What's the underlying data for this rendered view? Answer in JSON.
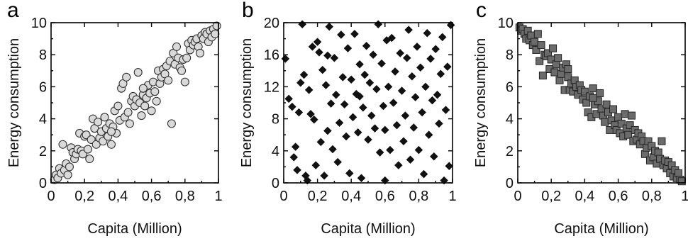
{
  "chart_data": [
    {
      "type": "scatter",
      "panel": "a",
      "xlabel": "Capita (Million)",
      "ylabel": "Energy consumption",
      "xlim": [
        0,
        1
      ],
      "ylim": [
        0,
        10
      ],
      "xticks": [
        0,
        0.2,
        0.4,
        0.6,
        0.8,
        1
      ],
      "yticks": [
        0,
        2,
        4,
        6,
        8,
        10
      ],
      "xtick_labels": [
        "0",
        "0,2",
        "0,4",
        "0,6",
        "0,8",
        "1"
      ],
      "ytick_labels": [
        "0",
        "2",
        "4",
        "6",
        "8",
        "10"
      ],
      "grid": false,
      "marker": "circle",
      "marker_fill": "#d9d9d9",
      "marker_edge": "#333333",
      "points": [
        [
          0.02,
          0.2
        ],
        [
          0.03,
          0.5
        ],
        [
          0.04,
          0.3
        ],
        [
          0.05,
          0.9
        ],
        [
          0.06,
          0.6
        ],
        [
          0.07,
          2.4
        ],
        [
          0.08,
          0.8
        ],
        [
          0.09,
          1.2
        ],
        [
          0.1,
          0.5
        ],
        [
          0.11,
          1.0
        ],
        [
          0.12,
          2.2
        ],
        [
          0.13,
          1.9
        ],
        [
          0.14,
          1.5
        ],
        [
          0.15,
          1.8
        ],
        [
          0.16,
          2.1
        ],
        [
          0.17,
          3.1
        ],
        [
          0.18,
          2.0
        ],
        [
          0.19,
          1.8
        ],
        [
          0.2,
          2.9
        ],
        [
          0.21,
          3.0
        ],
        [
          0.22,
          2.1
        ],
        [
          0.23,
          1.5
        ],
        [
          0.24,
          2.7
        ],
        [
          0.25,
          4.0
        ],
        [
          0.26,
          3.4
        ],
        [
          0.27,
          2.4
        ],
        [
          0.28,
          3.8
        ],
        [
          0.29,
          2.8
        ],
        [
          0.3,
          3.2
        ],
        [
          0.31,
          2.6
        ],
        [
          0.32,
          4.1
        ],
        [
          0.33,
          3.4
        ],
        [
          0.34,
          2.9
        ],
        [
          0.35,
          3.7
        ],
        [
          0.36,
          2.4
        ],
        [
          0.37,
          3.5
        ],
        [
          0.38,
          4.5
        ],
        [
          0.39,
          3.1
        ],
        [
          0.4,
          4.8
        ],
        [
          0.41,
          3.9
        ],
        [
          0.42,
          5.9
        ],
        [
          0.43,
          6.2
        ],
        [
          0.44,
          4.1
        ],
        [
          0.45,
          6.6
        ],
        [
          0.46,
          4.4
        ],
        [
          0.47,
          3.7
        ],
        [
          0.48,
          5.1
        ],
        [
          0.49,
          5.4
        ],
        [
          0.5,
          4.8
        ],
        [
          0.51,
          5.2
        ],
        [
          0.52,
          6.9
        ],
        [
          0.53,
          5.0
        ],
        [
          0.54,
          4.2
        ],
        [
          0.55,
          5.5
        ],
        [
          0.56,
          4.8
        ],
        [
          0.57,
          5.3
        ],
        [
          0.58,
          6.1
        ],
        [
          0.59,
          5.6
        ],
        [
          0.6,
          4.5
        ],
        [
          0.61,
          6.3
        ],
        [
          0.62,
          5.7
        ],
        [
          0.63,
          5.1
        ],
        [
          0.64,
          7.0
        ],
        [
          0.65,
          6.2
        ],
        [
          0.66,
          6.6
        ],
        [
          0.67,
          7.1
        ],
        [
          0.68,
          6.8
        ],
        [
          0.69,
          7.3
        ],
        [
          0.7,
          6.4
        ],
        [
          0.71,
          7.6
        ],
        [
          0.72,
          3.7
        ],
        [
          0.73,
          8.1
        ],
        [
          0.74,
          7.4
        ],
        [
          0.75,
          8.5
        ],
        [
          0.76,
          7.8
        ],
        [
          0.77,
          7.2
        ],
        [
          0.78,
          7.0
        ],
        [
          0.79,
          7.7
        ],
        [
          0.8,
          6.3
        ],
        [
          0.81,
          7.8
        ],
        [
          0.82,
          8.7
        ],
        [
          0.83,
          8.3
        ],
        [
          0.84,
          8.9
        ],
        [
          0.85,
          8.6
        ],
        [
          0.86,
          8.8
        ],
        [
          0.87,
          9.0
        ],
        [
          0.88,
          8.5
        ],
        [
          0.89,
          8.1
        ],
        [
          0.9,
          9.2
        ],
        [
          0.91,
          9.0
        ],
        [
          0.92,
          9.4
        ],
        [
          0.93,
          9.3
        ],
        [
          0.94,
          8.8
        ],
        [
          0.95,
          9.5
        ],
        [
          0.96,
          9.1
        ],
        [
          0.97,
          9.6
        ],
        [
          0.98,
          9.3
        ],
        [
          0.99,
          9.8
        ],
        [
          0.36,
          3.2
        ],
        [
          0.55,
          5.9
        ]
      ]
    },
    {
      "type": "scatter",
      "panel": "b",
      "xlabel": "Capita (Million)",
      "ylabel": "Energy consumption",
      "xlim": [
        0,
        1
      ],
      "ylim": [
        0,
        20
      ],
      "xticks": [
        0,
        0.2,
        0.4,
        0.6,
        0.8,
        1
      ],
      "yticks": [
        0,
        4,
        8,
        12,
        16,
        20
      ],
      "xtick_labels": [
        "0",
        "0,2",
        "0,4",
        "0,6",
        "0,8",
        "1"
      ],
      "ytick_labels": [
        "0",
        "4",
        "8",
        "12",
        "16",
        "20"
      ],
      "grid": false,
      "marker": "diamond",
      "marker_fill": "#111111",
      "marker_edge": "#111111",
      "points": [
        [
          0.01,
          15.5
        ],
        [
          0.03,
          10.5
        ],
        [
          0.05,
          9.5
        ],
        [
          0.06,
          3.2
        ],
        [
          0.07,
          4.5
        ],
        [
          0.08,
          1.6
        ],
        [
          0.09,
          8.8
        ],
        [
          0.1,
          12.5
        ],
        [
          0.11,
          19.8
        ],
        [
          0.12,
          13.5
        ],
        [
          0.13,
          0.9
        ],
        [
          0.14,
          0.3
        ],
        [
          0.15,
          11.6
        ],
        [
          0.16,
          8.6
        ],
        [
          0.17,
          17.0
        ],
        [
          0.18,
          7.9
        ],
        [
          0.19,
          2.2
        ],
        [
          0.2,
          17.6
        ],
        [
          0.21,
          16.3
        ],
        [
          0.22,
          5.1
        ],
        [
          0.23,
          14.1
        ],
        [
          0.24,
          0.9
        ],
        [
          0.25,
          12.2
        ],
        [
          0.26,
          6.5
        ],
        [
          0.27,
          19.5
        ],
        [
          0.28,
          9.9
        ],
        [
          0.29,
          4.2
        ],
        [
          0.3,
          15.6
        ],
        [
          0.31,
          11.0
        ],
        [
          0.32,
          2.6
        ],
        [
          0.33,
          7.5
        ],
        [
          0.34,
          18.5
        ],
        [
          0.35,
          13.2
        ],
        [
          0.36,
          9.8
        ],
        [
          0.37,
          5.8
        ],
        [
          0.38,
          16.8
        ],
        [
          0.39,
          1.2
        ],
        [
          0.4,
          12.9
        ],
        [
          0.41,
          8.2
        ],
        [
          0.42,
          18.6
        ],
        [
          0.43,
          11.1
        ],
        [
          0.44,
          6.3
        ],
        [
          0.45,
          14.8
        ],
        [
          0.46,
          0.6
        ],
        [
          0.47,
          9.4
        ],
        [
          0.48,
          13.5
        ],
        [
          0.49,
          17.1
        ],
        [
          0.5,
          5.4
        ],
        [
          0.51,
          12.5
        ],
        [
          0.52,
          8.4
        ],
        [
          0.53,
          16.0
        ],
        [
          0.54,
          6.8
        ],
        [
          0.55,
          11.7
        ],
        [
          0.56,
          19.8
        ],
        [
          0.57,
          3.8
        ],
        [
          0.58,
          14.9
        ],
        [
          0.59,
          9.6
        ],
        [
          0.6,
          6.6
        ],
        [
          0.61,
          17.8
        ],
        [
          0.62,
          12.0
        ],
        [
          0.63,
          4.1
        ],
        [
          0.64,
          18.1
        ],
        [
          0.65,
          10.0
        ],
        [
          0.66,
          13.9
        ],
        [
          0.67,
          7.2
        ],
        [
          0.68,
          2.2
        ],
        [
          0.69,
          16.2
        ],
        [
          0.7,
          11.5
        ],
        [
          0.71,
          5.2
        ],
        [
          0.72,
          8.4
        ],
        [
          0.73,
          15.6
        ],
        [
          0.74,
          19.1
        ],
        [
          0.75,
          2.9
        ],
        [
          0.76,
          13.3
        ],
        [
          0.77,
          6.9
        ],
        [
          0.78,
          10.7
        ],
        [
          0.79,
          17.0
        ],
        [
          0.8,
          4.1
        ],
        [
          0.81,
          14.4
        ],
        [
          0.82,
          8.8
        ],
        [
          0.83,
          1.1
        ],
        [
          0.84,
          12.0
        ],
        [
          0.85,
          18.7
        ],
        [
          0.86,
          6.0
        ],
        [
          0.87,
          15.5
        ],
        [
          0.88,
          10.3
        ],
        [
          0.89,
          3.3
        ],
        [
          0.9,
          16.7
        ],
        [
          0.91,
          11.0
        ],
        [
          0.92,
          7.4
        ],
        [
          0.93,
          13.6
        ],
        [
          0.94,
          18.2
        ],
        [
          0.95,
          0.3
        ],
        [
          0.96,
          9.1
        ],
        [
          0.97,
          14.5
        ],
        [
          0.98,
          2.1
        ],
        [
          0.99,
          19.7
        ],
        [
          0.45,
          10.8
        ],
        [
          0.6,
          0.3
        ],
        [
          0.26,
          15.9
        ]
      ]
    },
    {
      "type": "scatter",
      "panel": "c",
      "xlabel": "Capita (Million)",
      "ylabel": "Energy consumption",
      "xlim": [
        0,
        1
      ],
      "ylim": [
        0,
        10
      ],
      "xticks": [
        0,
        0.2,
        0.4,
        0.6,
        0.8,
        1
      ],
      "yticks": [
        0,
        2,
        4,
        6,
        8,
        10
      ],
      "xtick_labels": [
        "0",
        "0,2",
        "0,4",
        "0,6",
        "0,8",
        "1"
      ],
      "ytick_labels": [
        "0",
        "2",
        "4",
        "6",
        "8",
        "10"
      ],
      "grid": false,
      "marker": "square",
      "marker_fill": "#6b6b6b",
      "marker_edge": "#222222",
      "points": [
        [
          0.01,
          9.7
        ],
        [
          0.02,
          9.5
        ],
        [
          0.03,
          9.6
        ],
        [
          0.04,
          9.3
        ],
        [
          0.05,
          9.0
        ],
        [
          0.06,
          9.5
        ],
        [
          0.07,
          8.9
        ],
        [
          0.08,
          9.2
        ],
        [
          0.09,
          8.6
        ],
        [
          0.1,
          8.8
        ],
        [
          0.11,
          8.3
        ],
        [
          0.12,
          9.3
        ],
        [
          0.13,
          7.6
        ],
        [
          0.14,
          8.6
        ],
        [
          0.15,
          6.7
        ],
        [
          0.16,
          8.0
        ],
        [
          0.17,
          7.9
        ],
        [
          0.18,
          8.1
        ],
        [
          0.19,
          7.1
        ],
        [
          0.2,
          7.7
        ],
        [
          0.21,
          8.4
        ],
        [
          0.22,
          6.9
        ],
        [
          0.23,
          7.4
        ],
        [
          0.24,
          7.8
        ],
        [
          0.25,
          6.4
        ],
        [
          0.26,
          6.8
        ],
        [
          0.27,
          7.2
        ],
        [
          0.28,
          5.8
        ],
        [
          0.29,
          7.4
        ],
        [
          0.3,
          6.6
        ],
        [
          0.31,
          5.8
        ],
        [
          0.32,
          6.2
        ],
        [
          0.33,
          5.7
        ],
        [
          0.34,
          6.4
        ],
        [
          0.35,
          6.0
        ],
        [
          0.36,
          5.5
        ],
        [
          0.37,
          6.1
        ],
        [
          0.38,
          5.8
        ],
        [
          0.39,
          5.2
        ],
        [
          0.4,
          5.7
        ],
        [
          0.41,
          5.0
        ],
        [
          0.42,
          4.4
        ],
        [
          0.43,
          5.4
        ],
        [
          0.44,
          4.1
        ],
        [
          0.45,
          5.9
        ],
        [
          0.46,
          4.9
        ],
        [
          0.47,
          4.3
        ],
        [
          0.48,
          5.1
        ],
        [
          0.49,
          5.6
        ],
        [
          0.5,
          4.6
        ],
        [
          0.51,
          4.2
        ],
        [
          0.52,
          3.8
        ],
        [
          0.53,
          4.9
        ],
        [
          0.54,
          4.4
        ],
        [
          0.55,
          3.3
        ],
        [
          0.56,
          3.9
        ],
        [
          0.57,
          4.6
        ],
        [
          0.58,
          3.6
        ],
        [
          0.59,
          3.3
        ],
        [
          0.6,
          4.1
        ],
        [
          0.61,
          3.1
        ],
        [
          0.62,
          3.7
        ],
        [
          0.63,
          2.9
        ],
        [
          0.64,
          4.3
        ],
        [
          0.65,
          3.4
        ],
        [
          0.66,
          3.0
        ],
        [
          0.67,
          3.6
        ],
        [
          0.68,
          4.2
        ],
        [
          0.69,
          2.6
        ],
        [
          0.7,
          3.3
        ],
        [
          0.71,
          2.7
        ],
        [
          0.72,
          3.1
        ],
        [
          0.73,
          2.4
        ],
        [
          0.74,
          2.9
        ],
        [
          0.75,
          2.6
        ],
        [
          0.76,
          1.8
        ],
        [
          0.77,
          2.2
        ],
        [
          0.78,
          2.6
        ],
        [
          0.79,
          1.4
        ],
        [
          0.8,
          2.3
        ],
        [
          0.81,
          1.6
        ],
        [
          0.82,
          2.0
        ],
        [
          0.83,
          1.2
        ],
        [
          0.84,
          1.9
        ],
        [
          0.85,
          1.5
        ],
        [
          0.86,
          2.6
        ],
        [
          0.87,
          1.1
        ],
        [
          0.88,
          1.4
        ],
        [
          0.89,
          0.9
        ],
        [
          0.9,
          1.3
        ],
        [
          0.91,
          0.6
        ],
        [
          0.92,
          1.1
        ],
        [
          0.93,
          0.4
        ],
        [
          0.94,
          0.8
        ],
        [
          0.95,
          0.3
        ],
        [
          0.96,
          0.6
        ],
        [
          0.97,
          0.2
        ],
        [
          0.98,
          0.1
        ],
        [
          0.45,
          5.3
        ],
        [
          0.3,
          7.1
        ]
      ]
    }
  ]
}
